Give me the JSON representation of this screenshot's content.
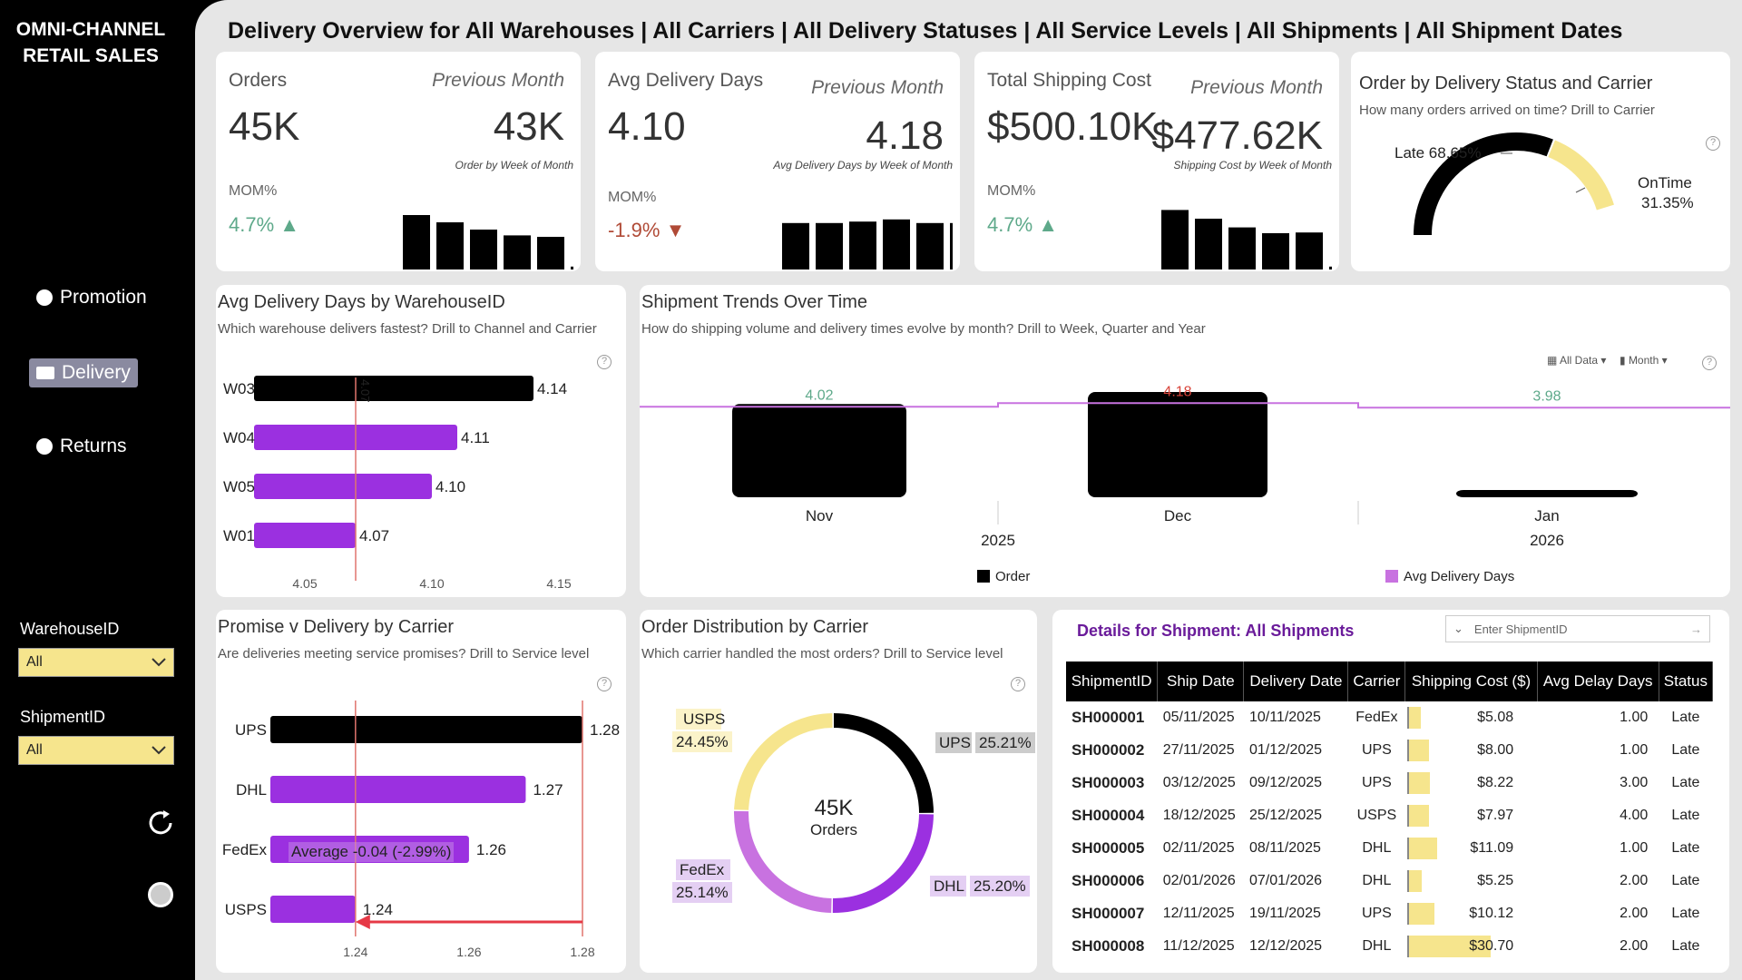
{
  "sidebar": {
    "brand_line1": "OMNI-CHANNEL",
    "brand_line2": "RETAIL SALES",
    "nav": [
      {
        "label": "Promotion",
        "icon": "promotion-icon",
        "active": false
      },
      {
        "label": "Delivery",
        "icon": "truck-icon",
        "active": true
      },
      {
        "label": "Returns",
        "icon": "returns-icon",
        "active": false
      }
    ],
    "filters": [
      {
        "label": "WarehouseID",
        "value": "All"
      },
      {
        "label": "ShipmentID",
        "value": "All"
      }
    ]
  },
  "header": {
    "title": "Delivery Overview for All Warehouses | All Carriers | All Delivery Statuses | All Service Levels | All Shipments | All Shipment Dates"
  },
  "kpis": [
    {
      "title": "Orders",
      "prev_label": "Previous Month",
      "value": "45K",
      "prev_value": "43K",
      "note": "Order by Week of Month",
      "mom_label": "MOM%",
      "mom": "4.7%",
      "trend": "up",
      "spark": [
        0.75,
        0.65,
        0.55,
        0.47,
        0.45,
        0.04
      ]
    },
    {
      "title": "Avg Delivery Days",
      "prev_label": "Previous Month",
      "value": "4.10",
      "prev_value": "4.18",
      "note": "Avg Delivery Days by Week of Month",
      "mom_label": "MOM%",
      "mom": "-1.9%",
      "trend": "down",
      "spark": [
        0.64,
        0.64,
        0.66,
        0.69,
        0.64,
        0.64
      ]
    },
    {
      "title": "Total Shipping Cost",
      "prev_label": "Previous Month",
      "value": "$500.10K",
      "prev_value": "$477.62K",
      "note": "Shipping Cost by Week of Month",
      "mom_label": "MOM%",
      "mom": "4.7%",
      "trend": "up",
      "spark": [
        0.82,
        0.7,
        0.58,
        0.5,
        0.51,
        0.04
      ]
    }
  ],
  "status_gauge": {
    "title": "Order by Delivery Status and Carrier",
    "subtitle": "How many orders arrived on time? Drill to Carrier",
    "late_label": "Late 68.65%",
    "ontime_label": "OnTime",
    "ontime_value": "31.35%",
    "late_pct": 68.65,
    "ontime_pct": 31.35,
    "colors": {
      "late": "#000000",
      "ontime": "#f6e58d"
    }
  },
  "warehouse_chart": {
    "title": "Avg Delivery Days by WarehouseID",
    "subtitle": "Which warehouse delivers fastest? Drill to Channel and Carrier",
    "ref_label": "4.07",
    "chart_data": {
      "type": "bar",
      "orientation": "horizontal",
      "categories": [
        "W03",
        "W04",
        "W05",
        "W01"
      ],
      "values": [
        4.14,
        4.11,
        4.1,
        4.07
      ],
      "value_labels": [
        "4.14",
        "4.11",
        "4.10",
        "4.07"
      ],
      "xlim": [
        4.03,
        4.155
      ],
      "ticks": [
        "4.05",
        "4.10",
        "4.15"
      ],
      "tick_values": [
        4.05,
        4.1,
        4.15
      ],
      "reference_line": 4.07,
      "colors": [
        "#000000",
        "#9b30e0",
        "#9b30e0",
        "#9b30e0"
      ]
    }
  },
  "trends_chart": {
    "title": "Shipment Trends Over Time",
    "subtitle": "How do shipping volume and delivery times evolve by month? Drill to Week, Quarter and Year",
    "controls": [
      "All Data",
      "Month"
    ],
    "chart_data": {
      "type": "bar",
      "categories": [
        "Nov",
        "Dec",
        "Jan"
      ],
      "years": [
        "2025",
        "2026"
      ],
      "series": [
        {
          "name": "Order",
          "values": [
            15.5,
            17.5,
            1.2
          ],
          "color": "#000000"
        },
        {
          "name": "Avg Delivery Days",
          "values": [
            4.02,
            4.18,
            3.98
          ],
          "labels": [
            "4.02",
            "4.18",
            "3.98"
          ],
          "label_colors": [
            "#5ea98a",
            "#d9443a",
            "#5ea98a"
          ],
          "color": "#c872e0"
        }
      ],
      "legend": [
        "Order",
        "Avg Delivery Days"
      ]
    }
  },
  "carrier_chart": {
    "title": "Promise v Delivery by Carrier",
    "subtitle": "Are deliveries meeting service promises? Drill to Service level",
    "avg_label": "Average -0.04 (-2.99%)",
    "chart_data": {
      "type": "bar",
      "orientation": "horizontal",
      "categories": [
        "UPS",
        "DHL",
        "FedEx",
        "USPS"
      ],
      "values": [
        1.28,
        1.27,
        1.26,
        1.24
      ],
      "value_labels": [
        "1.28",
        "1.27",
        "1.26",
        "1.24"
      ],
      "xlim": [
        1.225,
        1.28
      ],
      "ticks": [
        "1.24",
        "1.26",
        "1.28"
      ],
      "tick_values": [
        1.24,
        1.26,
        1.28
      ],
      "colors": [
        "#000000",
        "#9b30e0",
        "#9b30e0",
        "#9b30e0"
      ]
    }
  },
  "distribution_chart": {
    "title": "Order Distribution by Carrier",
    "subtitle": "Which carrier handled the most orders? Drill to Service level",
    "center_value": "45K",
    "center_label": "Orders",
    "chart_data": {
      "type": "pie",
      "categories": [
        "UPS",
        "DHL",
        "FedEx",
        "USPS"
      ],
      "values": [
        25.21,
        25.2,
        25.14,
        24.45
      ],
      "value_labels": [
        "25.21%",
        "25.20%",
        "25.14%",
        "24.45%"
      ],
      "colors": [
        "#000000",
        "#9b30e0",
        "#c872e0",
        "#f6e58d"
      ]
    }
  },
  "details": {
    "title": "Details for Shipment: All Shipments",
    "search_placeholder": "Enter ShipmentID",
    "columns": [
      "ShipmentID",
      "Ship Date",
      "Delivery Date",
      "Carrier",
      "Shipping Cost ($)",
      "Avg Delay Days",
      "Status"
    ],
    "cost_max": 30.7,
    "rows": [
      {
        "id": "SH000001",
        "ship": "05/11/2025",
        "delivery": "10/11/2025",
        "carrier": "FedEx",
        "cost": "$5.08",
        "cost_value": 5.08,
        "delay": "1.00",
        "status": "Late"
      },
      {
        "id": "SH000002",
        "ship": "27/11/2025",
        "delivery": "01/12/2025",
        "carrier": "UPS",
        "cost": "$8.00",
        "cost_value": 8.0,
        "delay": "1.00",
        "status": "Late"
      },
      {
        "id": "SH000003",
        "ship": "03/12/2025",
        "delivery": "09/12/2025",
        "carrier": "UPS",
        "cost": "$8.22",
        "cost_value": 8.22,
        "delay": "3.00",
        "status": "Late"
      },
      {
        "id": "SH000004",
        "ship": "18/12/2025",
        "delivery": "25/12/2025",
        "carrier": "USPS",
        "cost": "$7.97",
        "cost_value": 7.97,
        "delay": "4.00",
        "status": "Late"
      },
      {
        "id": "SH000005",
        "ship": "02/11/2025",
        "delivery": "08/11/2025",
        "carrier": "DHL",
        "cost": "$11.09",
        "cost_value": 11.09,
        "delay": "1.00",
        "status": "Late"
      },
      {
        "id": "SH000006",
        "ship": "02/01/2026",
        "delivery": "07/01/2026",
        "carrier": "DHL",
        "cost": "$5.25",
        "cost_value": 5.25,
        "delay": "2.00",
        "status": "Late"
      },
      {
        "id": "SH000007",
        "ship": "12/11/2025",
        "delivery": "19/11/2025",
        "carrier": "UPS",
        "cost": "$10.12",
        "cost_value": 10.12,
        "delay": "2.00",
        "status": "Late"
      },
      {
        "id": "SH000008",
        "ship": "11/12/2025",
        "delivery": "12/12/2025",
        "carrier": "DHL",
        "cost": "$30.70",
        "cost_value": 30.7,
        "delay": "2.00",
        "status": "Late"
      }
    ]
  }
}
